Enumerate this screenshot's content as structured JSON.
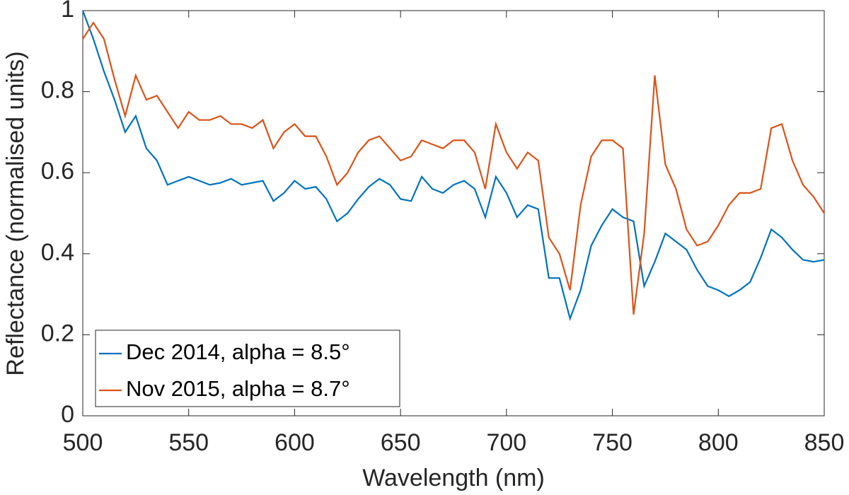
{
  "chart_data": {
    "type": "line",
    "xlabel": "Wavelength (nm)",
    "ylabel": "Reflectance (normalised units)",
    "x": [
      500,
      505,
      510,
      515,
      520,
      525,
      530,
      535,
      540,
      545,
      550,
      555,
      560,
      565,
      570,
      575,
      580,
      585,
      590,
      595,
      600,
      605,
      610,
      615,
      620,
      625,
      630,
      635,
      640,
      645,
      650,
      655,
      660,
      665,
      670,
      675,
      680,
      685,
      690,
      695,
      700,
      705,
      710,
      715,
      720,
      725,
      730,
      735,
      740,
      745,
      750,
      755,
      760,
      765,
      770,
      775,
      780,
      785,
      790,
      795,
      800,
      805,
      810,
      815,
      820,
      825,
      830,
      835,
      840,
      845,
      850
    ],
    "series": [
      {
        "name": "Dec 2014, alpha = 8.5°",
        "color": "#0072bd",
        "values": [
          1.0,
          0.93,
          0.85,
          0.78,
          0.7,
          0.74,
          0.66,
          0.63,
          0.57,
          0.58,
          0.59,
          0.58,
          0.57,
          0.575,
          0.585,
          0.57,
          0.575,
          0.58,
          0.53,
          0.55,
          0.58,
          0.56,
          0.565,
          0.535,
          0.48,
          0.5,
          0.535,
          0.565,
          0.585,
          0.57,
          0.535,
          0.53,
          0.59,
          0.56,
          0.55,
          0.57,
          0.58,
          0.56,
          0.49,
          0.59,
          0.55,
          0.49,
          0.52,
          0.51,
          0.34,
          0.34,
          0.24,
          0.31,
          0.42,
          0.47,
          0.51,
          0.49,
          0.48,
          0.32,
          0.38,
          0.45,
          0.43,
          0.41,
          0.36,
          0.32,
          0.31,
          0.295,
          0.31,
          0.33,
          0.39,
          0.46,
          0.44,
          0.41,
          0.385,
          0.38,
          0.385
        ]
      },
      {
        "name": "Nov 2015, alpha = 8.7°",
        "color": "#d95319",
        "values": [
          0.93,
          0.97,
          0.93,
          0.83,
          0.74,
          0.84,
          0.78,
          0.79,
          0.75,
          0.71,
          0.75,
          0.73,
          0.73,
          0.74,
          0.72,
          0.72,
          0.71,
          0.73,
          0.66,
          0.7,
          0.72,
          0.69,
          0.69,
          0.64,
          0.57,
          0.6,
          0.65,
          0.68,
          0.69,
          0.66,
          0.63,
          0.64,
          0.68,
          0.67,
          0.66,
          0.68,
          0.68,
          0.65,
          0.56,
          0.72,
          0.65,
          0.61,
          0.65,
          0.63,
          0.44,
          0.4,
          0.31,
          0.52,
          0.64,
          0.68,
          0.68,
          0.66,
          0.25,
          0.45,
          0.84,
          0.62,
          0.56,
          0.46,
          0.42,
          0.43,
          0.47,
          0.52,
          0.55,
          0.55,
          0.56,
          0.71,
          0.72,
          0.63,
          0.57,
          0.54,
          0.5
        ]
      }
    ],
    "xlim": [
      500,
      850
    ],
    "xticks": [
      500,
      550,
      600,
      650,
      700,
      750,
      800,
      850
    ],
    "ylim": [
      0,
      1
    ],
    "yticks": [
      0,
      0.2,
      0.4,
      0.6,
      0.8,
      1
    ],
    "grid": false,
    "legend": "lower left"
  }
}
